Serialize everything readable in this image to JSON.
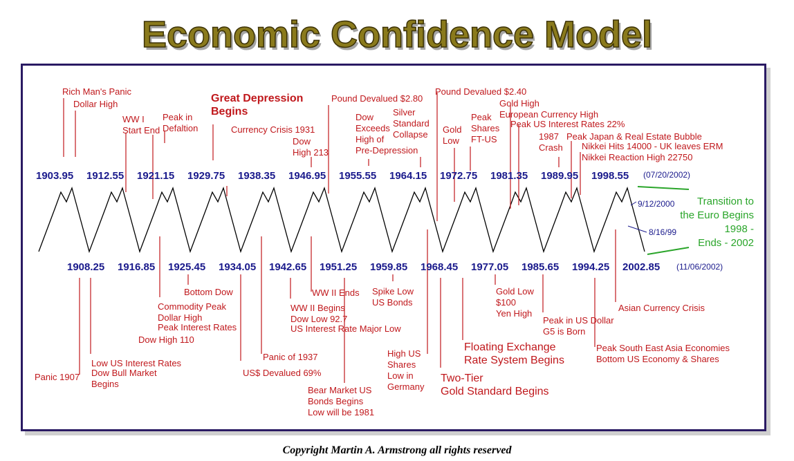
{
  "title": "Economic Confidence Model",
  "copyright": "Copyright Martin A. Armstrong all rights reserved",
  "colors": {
    "turning_point": "#1a1a8c",
    "event": "#c0181c",
    "transition": "#2aa52a",
    "wave": "#000000",
    "frame": "#2a1a63",
    "title_fill": "#8a7a1c"
  },
  "turning_points_top": [
    "1903.95",
    "1912.55",
    "1921.15",
    "1929.75",
    "1938.35",
    "1946.95",
    "1955.55",
    "1964.15",
    "1972.75",
    "1981.35",
    "1989.95",
    "1998.55"
  ],
  "turning_points_top_note": "(07/20/2002)",
  "turning_points_bottom": [
    "1908.25",
    "1916.85",
    "1925.45",
    "1934.05",
    "1942.65",
    "1951.25",
    "1959.85",
    "1968.45",
    "1977.05",
    "1985.65",
    "1994.25",
    "2002.85"
  ],
  "turning_points_bottom_note": "(11/06/2002)",
  "transition": {
    "line1": "Transition to",
    "line2": "the Euro Begins",
    "line3": "1998 -",
    "line4": "Ends - 2002"
  },
  "dates": {
    "d1": "9/12/2000",
    "d2": "8/16/99"
  },
  "events_top": [
    {
      "lines": [
        "Rich Man's Panic"
      ]
    },
    {
      "lines": [
        "Dollar High"
      ]
    },
    {
      "lines": [
        "WW I",
        "Start End"
      ]
    },
    {
      "lines": [
        "Peak in",
        "Defaltion"
      ]
    },
    {
      "lines": [
        "Great Depression",
        "Begins"
      ]
    },
    {
      "lines": [
        "Currency Crisis 1931"
      ]
    },
    {
      "lines": [
        "Dow",
        "High 213"
      ]
    },
    {
      "lines": [
        "Pound Devalued $2.80"
      ]
    },
    {
      "lines": [
        "Dow",
        "Exceeds",
        "High of",
        "Pre-Depression"
      ]
    },
    {
      "lines": [
        "Silver",
        "Standard",
        "Collapse"
      ]
    },
    {
      "lines": [
        "Pound Devalued $2.40"
      ]
    },
    {
      "lines": [
        "Gold",
        "Low"
      ]
    },
    {
      "lines": [
        "Peak",
        "Shares",
        "FT-US"
      ]
    },
    {
      "lines": [
        "Gold High",
        "European Currency High"
      ]
    },
    {
      "lines": [
        "Peak US Interest Rates 22%"
      ]
    },
    {
      "lines": [
        "1987",
        "Crash"
      ]
    },
    {
      "lines": [
        "Peak Japan & Real Estate Bubble"
      ]
    },
    {
      "lines": [
        "Nikkei Hits 14000 - UK leaves ERM",
        "Nikkei Reaction High 22750"
      ]
    }
  ],
  "events_bottom": [
    {
      "lines": [
        "Panic 1907"
      ]
    },
    {
      "lines": [
        "Low US Interest Rates"
      ]
    },
    {
      "lines": [
        "Dow Bull Market",
        "Begins"
      ]
    },
    {
      "lines": [
        "Dow High 110"
      ]
    },
    {
      "lines": [
        "Commodity Peak",
        "Dollar High"
      ]
    },
    {
      "lines": [
        "Peak Interest Rates"
      ]
    },
    {
      "lines": [
        "Bottom Dow"
      ]
    },
    {
      "lines": [
        "Panic of 1937"
      ]
    },
    {
      "lines": [
        "US$ Devalued 69%"
      ]
    },
    {
      "lines": [
        "WW II Begins",
        "Dow Low 92.7"
      ]
    },
    {
      "lines": [
        "US Interest Rate Major Low"
      ]
    },
    {
      "lines": [
        "WW II Ends"
      ]
    },
    {
      "lines": [
        "Bear Market US",
        "Bonds Begins",
        "Low will be 1981"
      ]
    },
    {
      "lines": [
        "Spike Low",
        "US Bonds"
      ]
    },
    {
      "lines": [
        "High US",
        "Shares",
        "Low in",
        "Germany"
      ]
    },
    {
      "lines": [
        "Two-Tier",
        "Gold Standard Begins"
      ]
    },
    {
      "lines": [
        "Floating Exchange",
        "Rate System Begins"
      ]
    },
    {
      "lines": [
        "Gold Low",
        "$100",
        "Yen High"
      ]
    },
    {
      "lines": [
        "Peak in US Dollar",
        "G5 is Born"
      ]
    },
    {
      "lines": [
        "Peak South East Asia Economies",
        "Bottom US Economy & Shares"
      ]
    },
    {
      "lines": [
        "Asian Currency Crisis"
      ]
    }
  ]
}
